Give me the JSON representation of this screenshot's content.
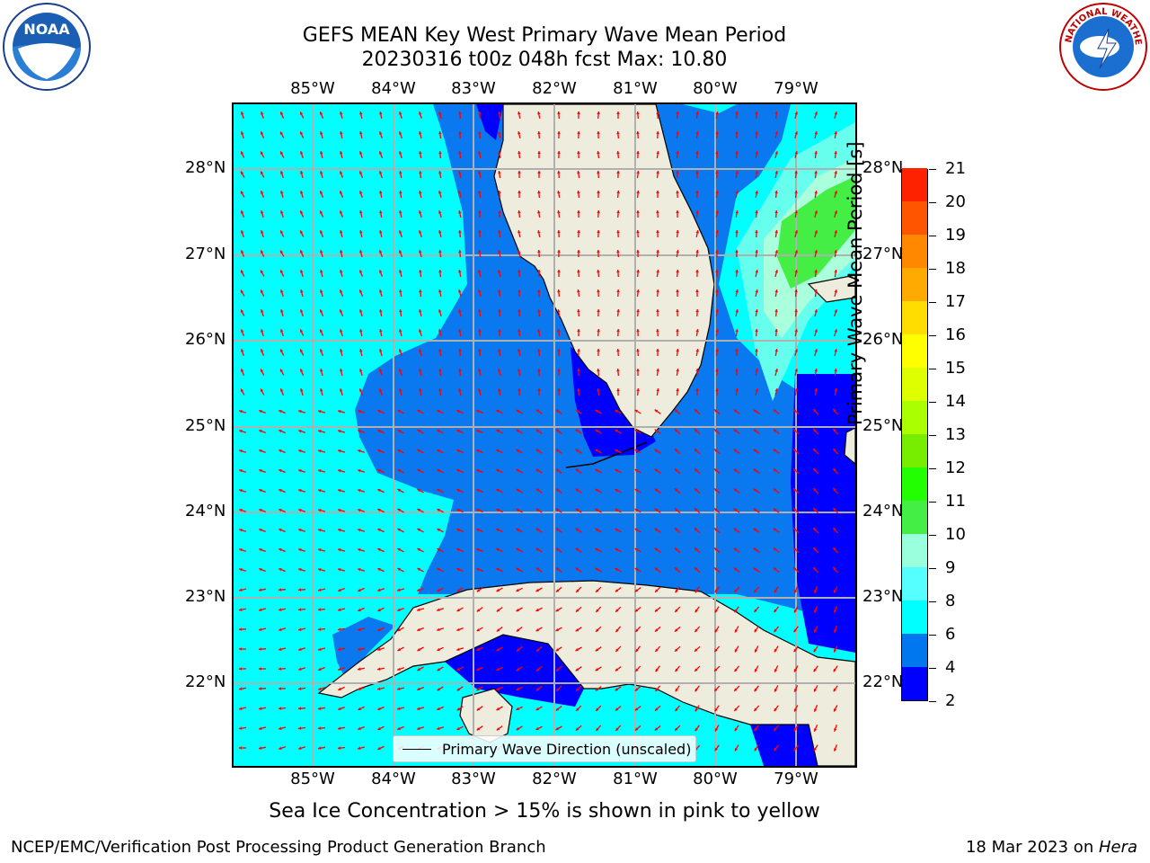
{
  "title": {
    "line1": "GEFS MEAN Key West Primary Wave Mean Period",
    "line2": "20230316 t00z 048h fcst   Max: 10.80"
  },
  "logos": {
    "noaa": {
      "name": "noaa-logo",
      "text": "NOAA"
    },
    "nws": {
      "name": "nws-logo",
      "text": "NATIONAL WEATHER SERVICE"
    }
  },
  "map": {
    "lon_labels": [
      "85°W",
      "84°W",
      "83°W",
      "82°W",
      "81°W",
      "80°W",
      "79°W"
    ],
    "lat_labels": [
      "28°N",
      "27°N",
      "26°N",
      "25°N",
      "24°N",
      "23°N",
      "22°N"
    ],
    "legend_label": "Primary Wave Direction (unscaled)",
    "colors": {
      "land": "#eeecdc",
      "coast": "#000000",
      "arrow": "#ff0000",
      "grid": "#b0b0b0"
    }
  },
  "colorbar": {
    "title": "Primary Wave Mean Period [s]",
    "ticks": [
      "2",
      "4",
      "6",
      "8",
      "9",
      "10",
      "11",
      "12",
      "13",
      "14",
      "15",
      "16",
      "17",
      "18",
      "19",
      "20",
      "21"
    ],
    "colors": [
      "#0000ff",
      "#0077ee",
      "#00ffff",
      "#55ffff",
      "#99ffdd",
      "#44ee44",
      "#22ff00",
      "#77ee00",
      "#aaff00",
      "#ddff00",
      "#ffff00",
      "#ffdd00",
      "#ffaa00",
      "#ff8800",
      "#ff5500",
      "#ff2200"
    ]
  },
  "note": "Sea Ice Concentration > 15% is shown in pink to yellow",
  "footer": {
    "left": "NCEP/EMC/Verification Post Processing Product Generation Branch",
    "date": "18 Mar 2023 on ",
    "host": "Hera"
  }
}
